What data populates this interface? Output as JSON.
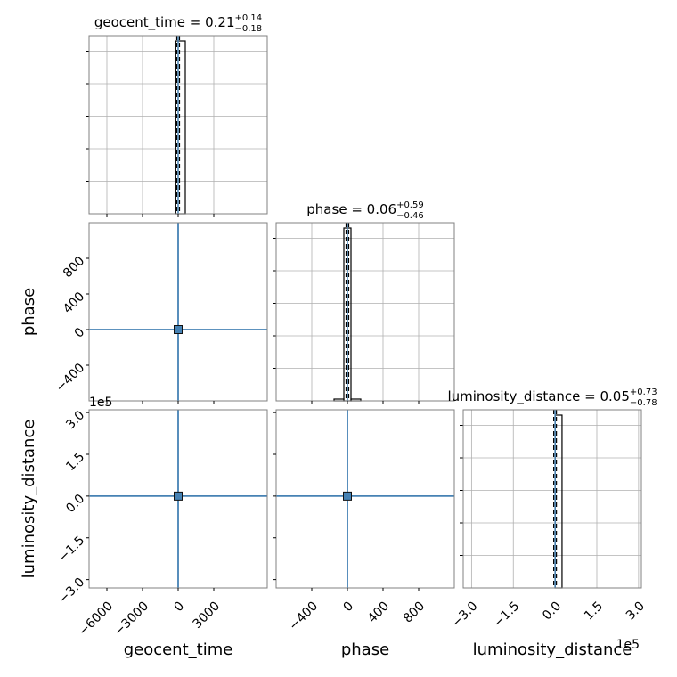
{
  "chart_data": {
    "type": "corner",
    "colors": {
      "hist": "#000000",
      "marker": "#4682b4",
      "grid": "#b0b0b0",
      "frame": "#000000"
    },
    "params": [
      {
        "name": "geocent_time",
        "title_name": "geocent_time",
        "median": "0.21",
        "plus": "+0.14",
        "minus": "−0.18",
        "range": [
          -7500,
          7500
        ],
        "ticks": [
          -6000,
          -3000,
          0,
          3000
        ],
        "tick_labels": [
          "−6000",
          "−3000",
          "0",
          "3000"
        ],
        "truth": 0,
        "hist": [
          {
            "x0": -200,
            "x1": 600,
            "h": 0.97
          }
        ]
      },
      {
        "name": "phase",
        "title_name": "phase",
        "median": "0.06",
        "plus": "+0.59",
        "minus": "−0.46",
        "range": [
          -800,
          1200
        ],
        "ticks": [
          -400,
          0,
          400,
          800
        ],
        "tick_labels": [
          "−400",
          "0",
          "400",
          "800"
        ],
        "truth": 0,
        "hist": [
          {
            "x0": -150,
            "x1": -40,
            "h": 0.01
          },
          {
            "x0": -40,
            "x1": 40,
            "h": 0.97
          },
          {
            "x0": 40,
            "x1": 150,
            "h": 0.01
          }
        ]
      },
      {
        "name": "luminosity_distance",
        "title_name": "luminosity_distance",
        "median": "0.05",
        "plus": "+0.73",
        "minus": "−0.78",
        "range": [
          -3.3,
          3.1
        ],
        "ticks": [
          -3.0,
          -1.5,
          0.0,
          1.5,
          3.0
        ],
        "tick_labels": [
          "−3.0",
          "−1.5",
          "0.0",
          "1.5",
          "3.0"
        ],
        "truth": 0,
        "offset_label": "1e5",
        "hist": [
          {
            "x0": 0.0,
            "x1": 0.25,
            "h": 0.97
          }
        ]
      }
    ]
  }
}
